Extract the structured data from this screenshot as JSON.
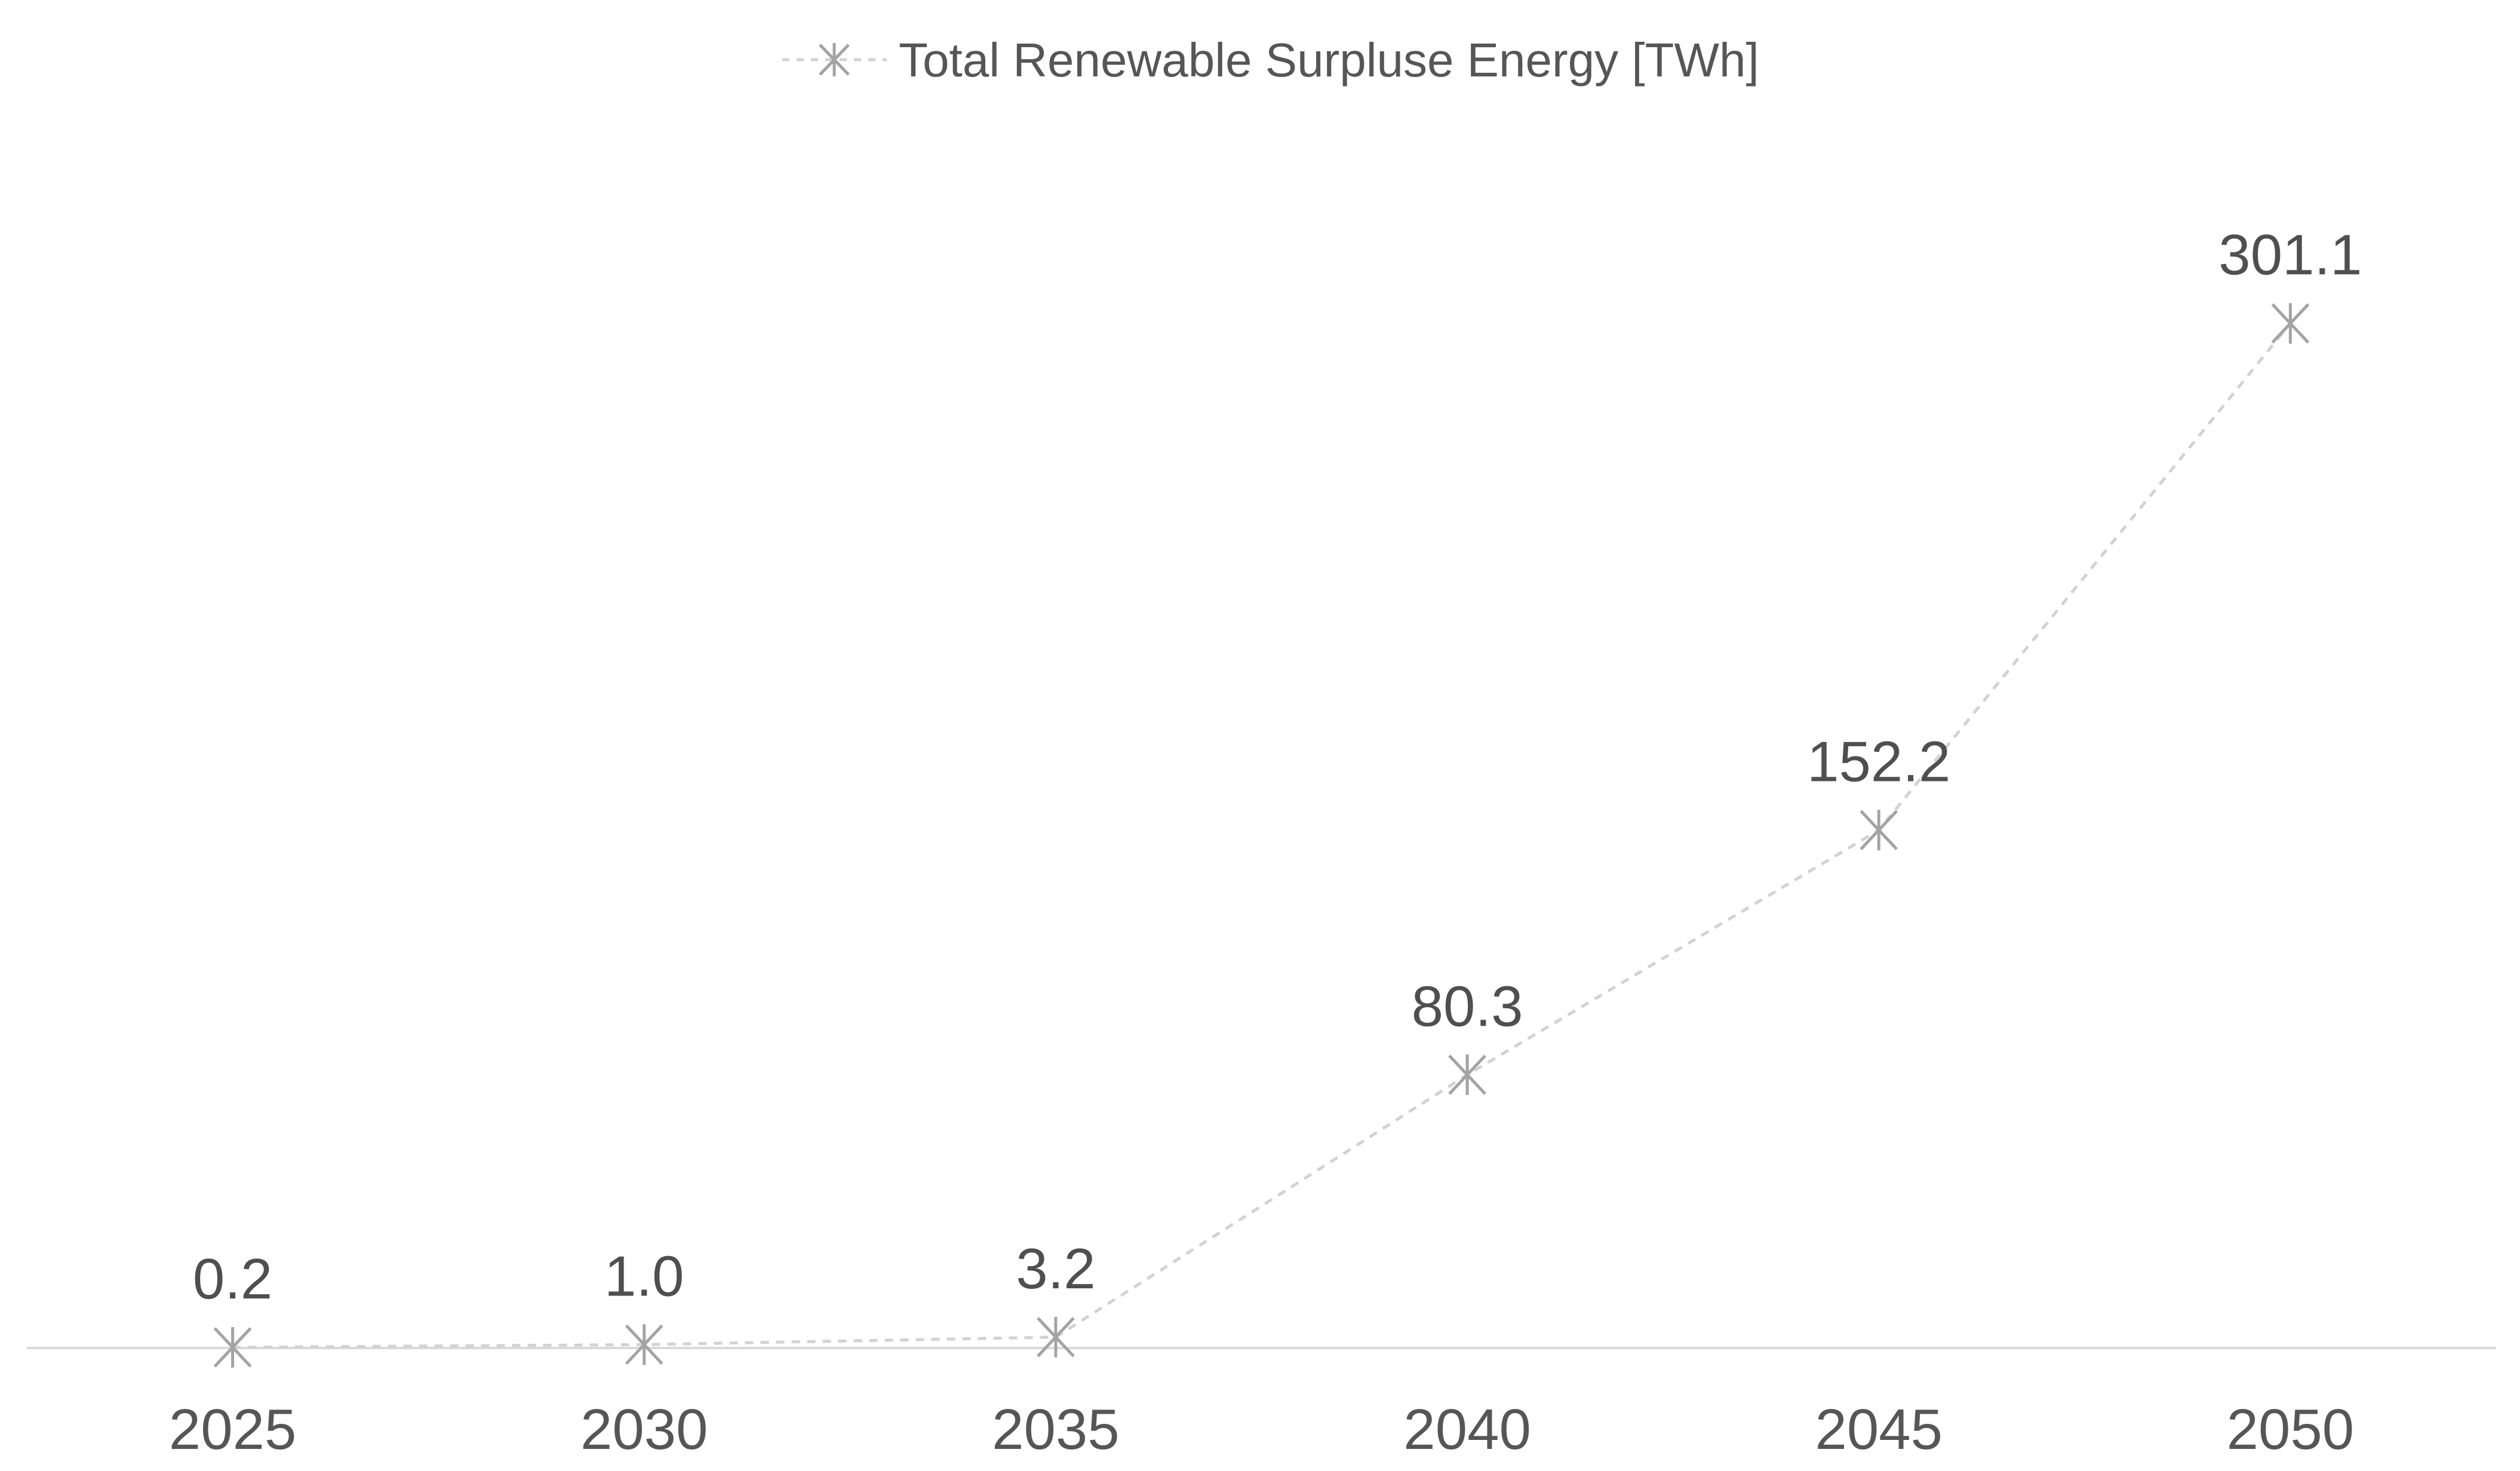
{
  "chart_data": {
    "type": "line",
    "title": "",
    "xlabel": "",
    "ylabel": "",
    "categories": [
      "2025",
      "2030",
      "2035",
      "2040",
      "2045",
      "2050"
    ],
    "series": [
      {
        "name": "Total Renewable Surpluse Energy [TWh]",
        "values": [
          0.2,
          1.0,
          3.2,
          80.3,
          152.2,
          301.1
        ]
      }
    ],
    "data_labels": [
      "0.2",
      "1.0",
      "3.2",
      "80.3",
      "152.2",
      "301.1"
    ],
    "data_label_decimals": 1,
    "legend_position": "top-center",
    "grid": false,
    "y_axis_visible": false,
    "x_axis_visible": true,
    "line_style": "dashed",
    "marker_style": "asterisk",
    "colors": {
      "series_line": "#d2d2d2",
      "marker": "#a3a3a3",
      "axis_line": "#d9d9d9",
      "label_text": "#4f4f4f",
      "tick_text": "#565656",
      "legend_text": "#565656",
      "background": "#ffffff"
    }
  }
}
